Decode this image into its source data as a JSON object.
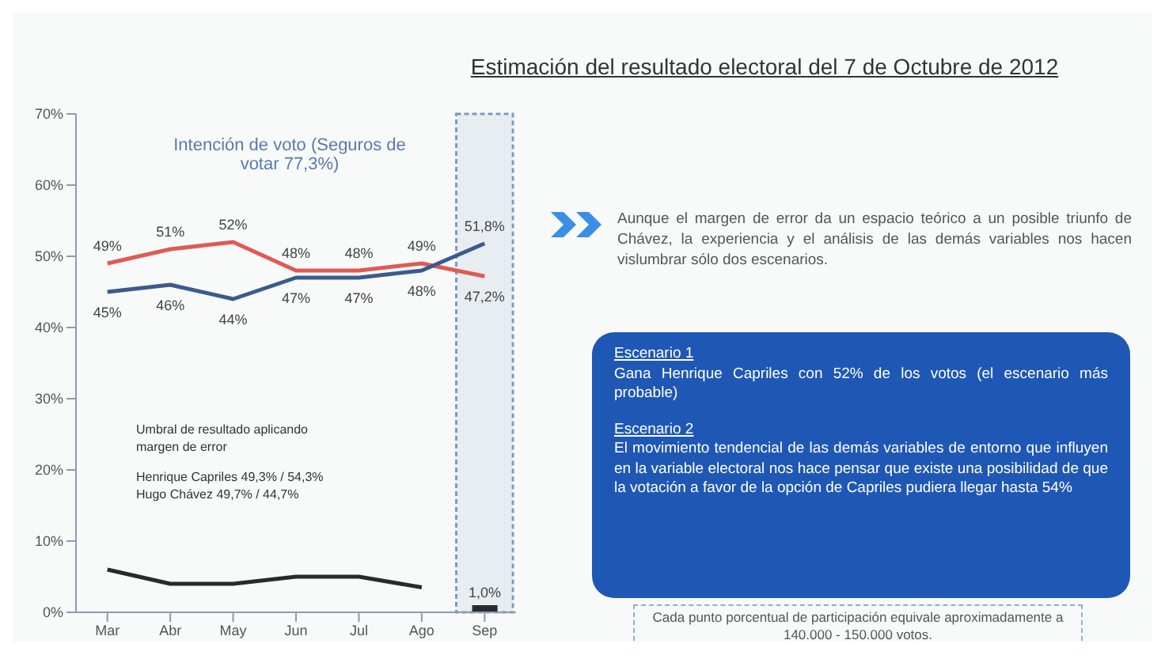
{
  "chart_data": {
    "type": "line",
    "title": "Estimación del resultado electoral del 7 de Octubre de 2012",
    "subtitle": "Intención de voto (Seguros de votar 77,3%)",
    "categories": [
      "Mar",
      "Abr",
      "May",
      "Jun",
      "Jul",
      "Ago",
      "Sep"
    ],
    "series": [
      {
        "color": "#e05a55",
        "values": [
          49,
          51,
          52,
          48,
          48,
          49,
          47.2
        ],
        "value_labels": [
          "49%",
          "51%",
          "52%",
          "48%",
          "48%",
          "49%",
          "47,2%"
        ]
      },
      {
        "color": "#3d5a8e",
        "values": [
          45,
          46,
          44,
          47,
          47,
          48,
          51.8
        ],
        "value_labels": [
          "45%",
          "46%",
          "44%",
          "47%",
          "47%",
          "48%",
          "51,8%"
        ]
      },
      {
        "color": "#2a2a2a",
        "values": [
          6,
          4,
          4,
          5,
          5,
          3.5,
          null
        ]
      },
      {
        "type": "bar",
        "color": "#2a2a2a",
        "values": [
          null,
          null,
          null,
          null,
          null,
          null,
          1.0
        ],
        "value_labels": [
          null,
          null,
          null,
          null,
          null,
          null,
          "1,0%"
        ]
      }
    ],
    "ylim": [
      0,
      70
    ],
    "yticks": [
      {
        "value": 0,
        "label": "0%"
      },
      {
        "value": 10,
        "label": "10%"
      },
      {
        "value": 20,
        "label": "20%"
      },
      {
        "value": 30,
        "label": "30%"
      },
      {
        "value": 40,
        "label": "40%"
      },
      {
        "value": 50,
        "label": "50%"
      },
      {
        "value": 60,
        "label": "60%"
      },
      {
        "value": 70,
        "label": "70%"
      }
    ],
    "bands": [
      {
        "axis": "x",
        "from": "Sep",
        "to": "Sep",
        "color": "#7f98c4"
      }
    ],
    "annotations": [
      "Umbral de resultado aplicando margen de error",
      "Henrique Capriles 49,3% / 54,3%",
      "Hugo Chávez 49,7% / 44,7%",
      "Aunque el margen de error da un espacio teórico a un posible triunfo de Chávez, la experiencia y el análisis de las demás variables nos hacen vislumbrar sólo dos escenarios.",
      "Escenario 1",
      "Gana Henrique Capriles con 52% de los votos (el escenario más probable)",
      "Escenario 2",
      "El movimiento tendencial de las demás variables de entorno que influyen en la variable electoral nos hace pensar que existe una posibilidad de que la votación a favor de la opción de Capriles pudiera llegar hasta 54%",
      "Cada punto porcentual de participación equivale aproximadamente a 140.000 - 150.000 votos."
    ]
  }
}
